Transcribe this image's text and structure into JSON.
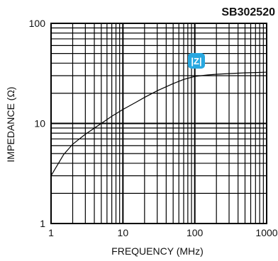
{
  "chart_data": {
    "type": "line",
    "title": "SB302520",
    "xlabel": "FREQUENCY (MHz)",
    "ylabel": "IMPEDANCE (Ω)",
    "x_scale": "log",
    "y_scale": "log",
    "xlim": [
      1,
      1000
    ],
    "ylim": [
      1,
      100
    ],
    "x_tick_labels": [
      "1",
      "10",
      "100",
      "1000"
    ],
    "y_tick_labels": [
      "1",
      "10",
      "100"
    ],
    "grid": true,
    "series": [
      {
        "name": "|Z|",
        "color": "#000000",
        "points": [
          [
            1,
            3.0
          ],
          [
            1.5,
            4.9
          ],
          [
            2,
            6.2
          ],
          [
            3,
            7.8
          ],
          [
            5,
            10.0
          ],
          [
            7,
            11.8
          ],
          [
            10,
            13.8
          ],
          [
            15,
            16.2
          ],
          [
            20,
            18.2
          ],
          [
            30,
            21.2
          ],
          [
            50,
            25.0
          ],
          [
            70,
            27.5
          ],
          [
            100,
            29.5
          ],
          [
            150,
            30.5
          ],
          [
            200,
            31.0
          ],
          [
            300,
            31.5
          ],
          [
            500,
            32.0
          ],
          [
            700,
            32.2
          ],
          [
            1000,
            32.5
          ]
        ]
      }
    ],
    "badge_color": "#29a8e0"
  }
}
